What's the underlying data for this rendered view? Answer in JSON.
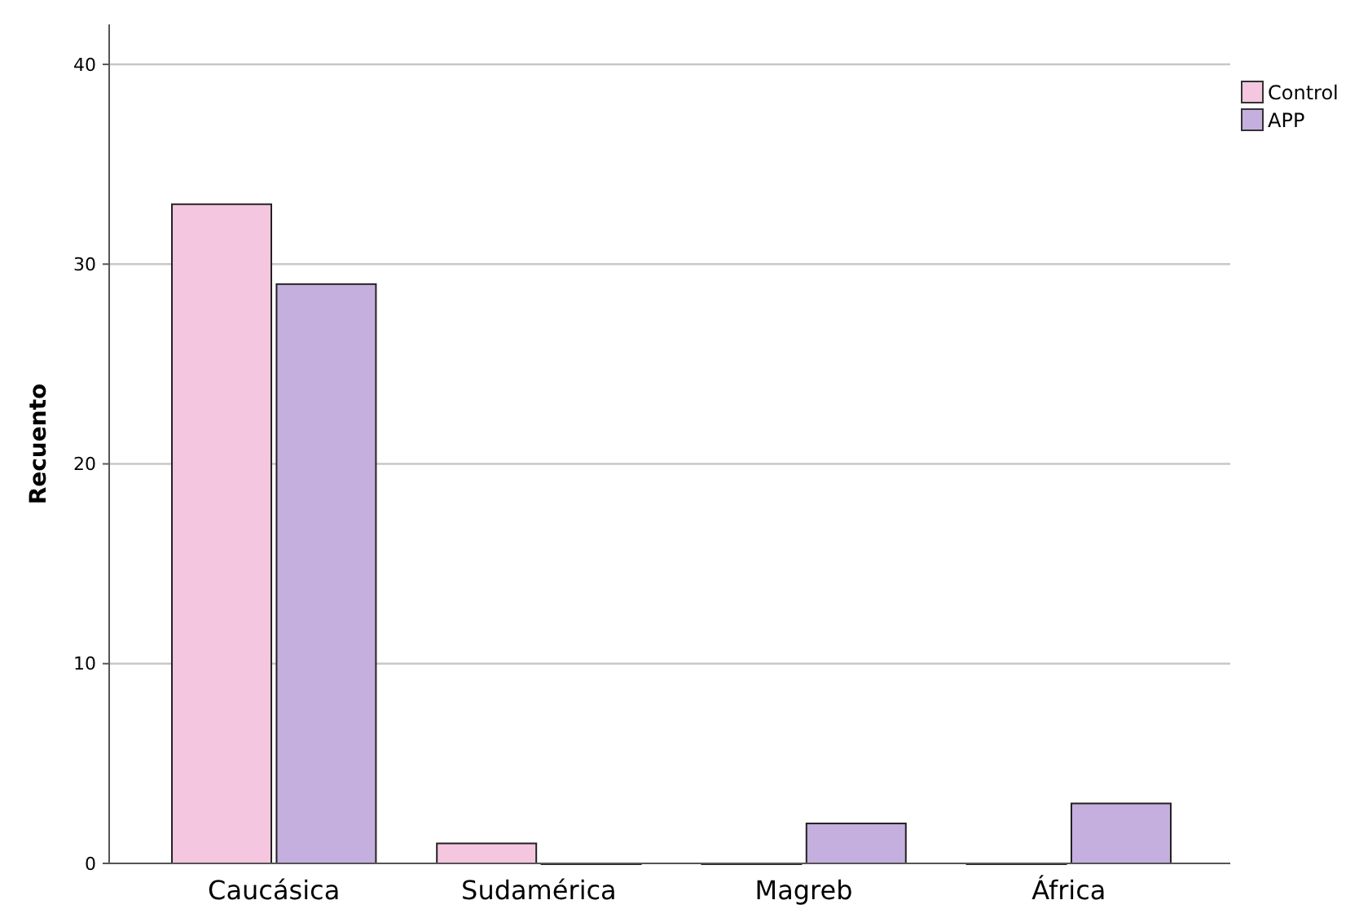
{
  "chart_data": {
    "type": "bar",
    "ylabel": "Recuento",
    "categories": [
      "Caucásica",
      "Sudamérica",
      "Magreb",
      "África"
    ],
    "series": [
      {
        "name": "Control",
        "color": "#f5c6e0",
        "values": [
          33,
          1,
          0,
          0
        ]
      },
      {
        "name": "APP",
        "color": "#c5afde",
        "values": [
          29,
          0,
          2,
          3
        ]
      }
    ],
    "ylim": [
      0,
      42
    ],
    "yticks": [
      0,
      10,
      20,
      30,
      40
    ],
    "grid": "y",
    "legend": "top right"
  }
}
